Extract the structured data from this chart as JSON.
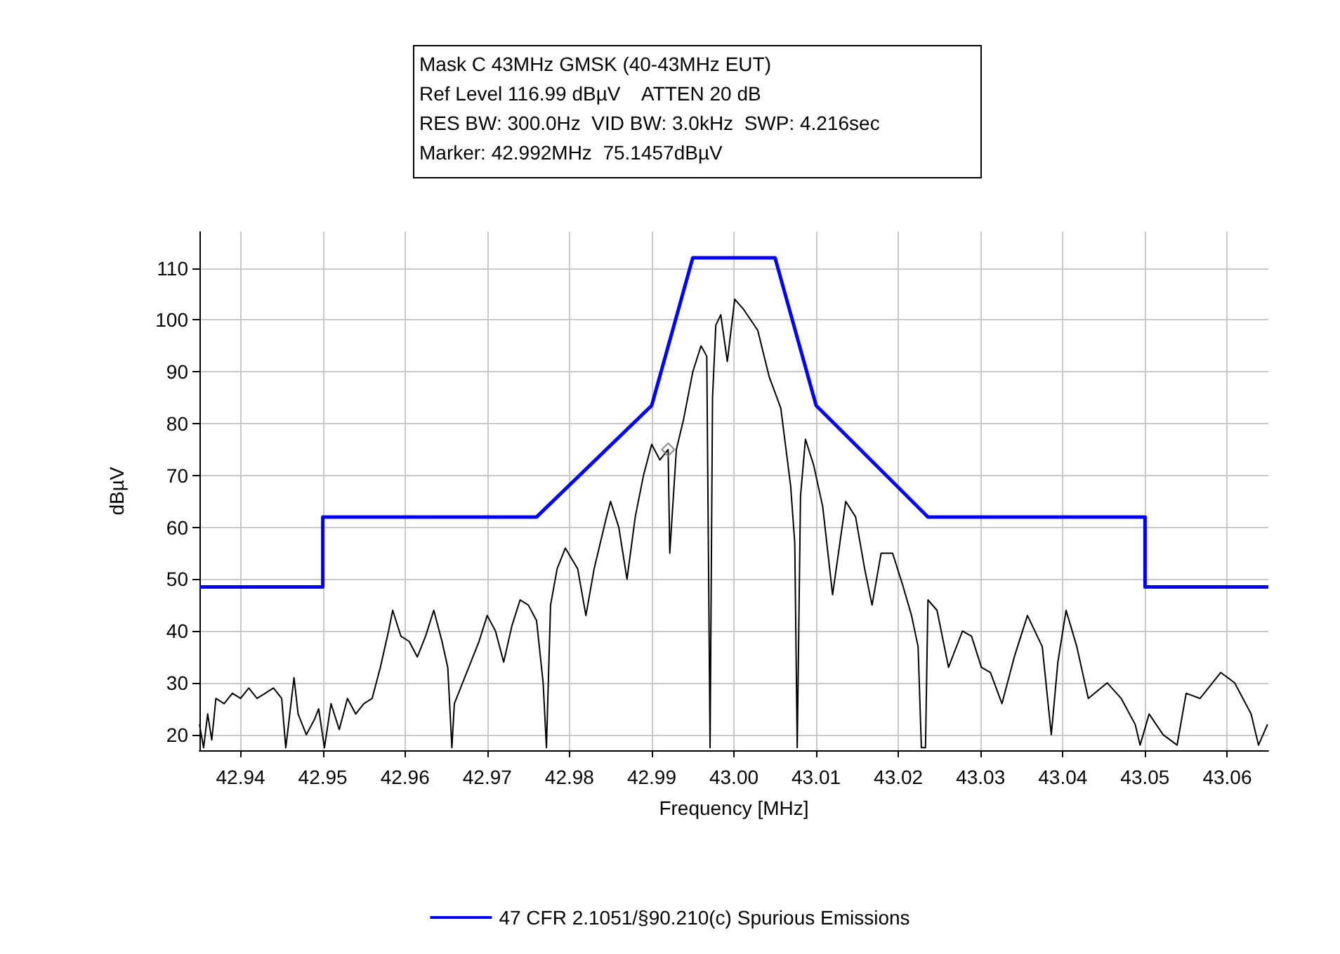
{
  "chart_data": {
    "type": "line",
    "xlabel": "Frequency [MHz]",
    "ylabel": "dBµV",
    "annotations": [
      "Mask C 43MHz GMSK (40-43MHz EUT)",
      "Ref Level 116.99 dBµV    ATTEN 20 dB",
      "RES BW: 300.0Hz  VID BW: 3.0kHz  SWP: 4.216sec",
      "Marker: 42.992MHz  75.1457dBµV"
    ],
    "xlim": [
      42.935,
      43.065
    ],
    "ylim": [
      17,
      117
    ],
    "xticks": [
      42.94,
      42.95,
      42.96,
      42.97,
      42.98,
      42.99,
      {
        "value": 43,
        "label": "43.00"
      },
      43.01,
      43.02,
      43.03,
      43.04,
      43.05,
      43.06
    ],
    "yticks": [
      20,
      30,
      40,
      50,
      60,
      70,
      80,
      90,
      100,
      110
    ],
    "grid": true,
    "legend": "bottom",
    "series": [
      {
        "color": "#000000",
        "marker": "none",
        "x": [
          42.935,
          42.9355,
          42.936,
          42.9365,
          42.937,
          42.938,
          42.939,
          42.94,
          42.941,
          42.942,
          42.943,
          42.944,
          42.945,
          42.9455,
          42.9465,
          42.947,
          42.948,
          42.949,
          42.9495,
          42.9502,
          42.951,
          42.952,
          42.953,
          42.954,
          42.955,
          42.956,
          42.957,
          42.958,
          42.9585,
          42.9595,
          42.9605,
          42.9615,
          42.9625,
          42.9635,
          42.9645,
          42.9652,
          42.9657,
          42.966,
          42.967,
          42.968,
          42.969,
          42.97,
          42.971,
          42.972,
          42.973,
          42.974,
          42.975,
          42.976,
          42.9768,
          42.9772,
          42.9777,
          42.9785,
          42.9795,
          42.981,
          42.982,
          42.983,
          42.9845,
          42.985,
          42.986,
          42.987,
          42.988,
          42.989,
          42.99,
          42.991,
          42.992,
          42.9922,
          42.993,
          42.9939,
          42.995,
          42.996,
          42.9967,
          42.9971,
          42.9974,
          42.9978,
          42.9984,
          42.9992,
          43.0001,
          43.0012,
          43.0029,
          43.0043,
          43.0057,
          43.0069,
          43.0074,
          43.0077,
          43.0081,
          43.0087,
          43.0097,
          43.0108,
          43.012,
          43.0136,
          43.0148,
          43.0159,
          43.0168,
          43.0179,
          43.0193,
          43.0205,
          43.0216,
          43.0224,
          43.0228,
          43.0233,
          43.0236,
          43.0247,
          43.0261,
          43.0278,
          43.0289,
          43.0301,
          43.0312,
          43.0326,
          43.0341,
          43.0357,
          43.0375,
          43.0386,
          43.0394,
          43.0404,
          43.0417,
          43.0431,
          43.0454,
          43.0471,
          43.0488,
          43.0494,
          43.0505,
          43.0522,
          43.0539,
          43.055,
          43.0567,
          43.0592,
          43.0609,
          43.0629,
          43.0638,
          43.0649
        ],
        "values": [
          22,
          17.5,
          24,
          19,
          27,
          26,
          28,
          27,
          29,
          27,
          28,
          29,
          27,
          17.5,
          31,
          24,
          20,
          23,
          25,
          17.5,
          26,
          21,
          27,
          24,
          26,
          27,
          33,
          40,
          44,
          39,
          38,
          35,
          39,
          44,
          38,
          33,
          17.5,
          26,
          30,
          34,
          38,
          43,
          40,
          34,
          41,
          46,
          45,
          42,
          30,
          17.5,
          45,
          52,
          56,
          52,
          43,
          52,
          62,
          65,
          60,
          50,
          62,
          70,
          76,
          73,
          75,
          55,
          75,
          81,
          90,
          95,
          93,
          17.5,
          85,
          99,
          101,
          92,
          104,
          102,
          98,
          89,
          83,
          68,
          57,
          17.5,
          66,
          77,
          72,
          64,
          47,
          65,
          62,
          52,
          45,
          55,
          55,
          49,
          43,
          37,
          17.5,
          17.5,
          46,
          44,
          33,
          40,
          39,
          33,
          32,
          26,
          35,
          43,
          37,
          20,
          34,
          44,
          37,
          27,
          30,
          27,
          22,
          18,
          24,
          20,
          18,
          28,
          27,
          32,
          30,
          24,
          18,
          22
        ]
      },
      {
        "name": "47 CFR 2.1051/§90.210(c) Spurious Emissions",
        "color": "#0000ff",
        "marker": "none",
        "x": [
          42.935,
          42.95,
          42.95,
          42.976,
          42.99,
          42.995,
          43.005,
          43.01,
          43.0236,
          43.05,
          43.05,
          43.065
        ],
        "values": [
          48.5,
          48.5,
          62,
          62,
          83.5,
          112,
          112,
          83.5,
          62,
          62,
          48.5,
          48.5
        ]
      },
      {
        "type": "scatter",
        "color": "#808080",
        "marker": "diamond",
        "x": [
          42.992
        ],
        "values": [
          75
        ]
      }
    ]
  }
}
